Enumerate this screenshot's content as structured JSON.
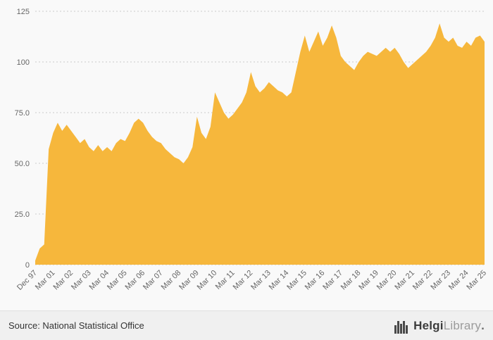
{
  "chart_data": {
    "type": "area",
    "title": "",
    "xlabel": "",
    "ylabel": "",
    "ylim": [
      0,
      125
    ],
    "y_tick_labels": [
      "0",
      "25.0",
      "50.0",
      "75.0",
      "100",
      "125"
    ],
    "x_tick_labels": [
      "Dec 97",
      "Mar 01",
      "Mar 02",
      "Mar 03",
      "Mar 04",
      "Mar 05",
      "Mar 06",
      "Mar 07",
      "Mar 08",
      "Mar 09",
      "Mar 10",
      "Mar 11",
      "Mar 12",
      "Mar 13",
      "Mar 14",
      "Mar 15",
      "Mar 16",
      "Mar 17",
      "Mar 18",
      "Mar 19",
      "Mar 20",
      "Mar 21",
      "Mar 22",
      "Mar 23",
      "Mar 24",
      "Mar 25"
    ],
    "ticks_every": 4,
    "values": [
      2,
      8,
      10,
      57,
      65,
      70,
      66,
      69,
      66,
      63,
      60,
      62,
      58,
      56,
      59,
      56,
      58,
      56,
      60,
      62,
      61,
      65,
      70,
      72,
      70,
      66,
      63,
      61,
      60,
      57,
      55,
      53,
      52,
      50,
      53,
      58,
      73,
      65,
      62,
      68,
      85,
      80,
      75,
      72,
      74,
      77,
      80,
      85,
      95,
      88,
      85,
      87,
      90,
      88,
      86,
      85,
      83,
      85,
      95,
      105,
      113,
      105,
      110,
      115,
      108,
      112,
      118,
      112,
      103,
      100,
      98,
      96,
      100,
      103,
      105,
      104,
      103,
      105,
      107,
      105,
      107,
      104,
      100,
      97,
      99,
      101,
      103,
      105,
      108,
      112,
      119,
      112,
      110,
      112,
      108,
      107,
      110,
      108,
      112,
      113,
      110
    ],
    "grid": "horizontal-dotted",
    "legend": "none",
    "fill_color": "#f6b73c",
    "grid_color": "#cccccc",
    "axis_text_color": "#666666",
    "background": "#f9f9f9"
  },
  "footer": {
    "source_text": "Source: National Statistical Office",
    "logo": {
      "brand_bold": "Helgi",
      "brand_light": "Library",
      "suffix": "."
    }
  }
}
